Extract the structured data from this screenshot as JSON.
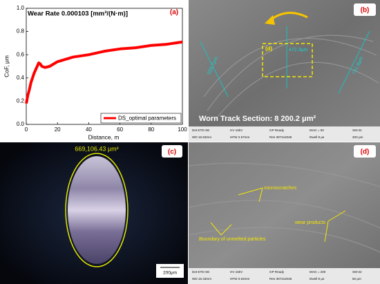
{
  "chart_data": {
    "type": "line",
    "panel_label": "(a)",
    "title": "Wear Rate 0.000103 [mm³/(N·m)]",
    "x_label": "Distance, m",
    "y_label": "CoF, μm",
    "xlim": [
      0,
      100
    ],
    "xticks": [
      0,
      20,
      40,
      60,
      80,
      100
    ],
    "ylim": [
      0,
      1.0
    ],
    "yticks": [
      {
        "value": 0,
        "label": "0.0"
      },
      0.2,
      0.4,
      0.6,
      0.8,
      {
        "value": 1.0,
        "label": "1.0"
      }
    ],
    "legend": "lower right",
    "series": [
      {
        "name": "DS_optimal parameters",
        "color": "#ff0000",
        "x": [
          0,
          1,
          2,
          3,
          5,
          7,
          8,
          9,
          10,
          12,
          15,
          20,
          30,
          40,
          50,
          60,
          70,
          80,
          90,
          95,
          100
        ],
        "values": [
          0.18,
          0.25,
          0.3,
          0.36,
          0.44,
          0.5,
          0.53,
          0.52,
          0.5,
          0.49,
          0.5,
          0.54,
          0.58,
          0.6,
          0.63,
          0.65,
          0.66,
          0.68,
          0.69,
          0.7,
          0.71
        ]
      }
    ]
  },
  "panels": {
    "b": {
      "label": "(b)",
      "measurements": [
        "659.7μm",
        "472.3μm",
        "731.9μm"
      ],
      "inset_label": "(d)",
      "caption": "Worn Track Section: 8 200.2 μm²",
      "info_bar": [
        [
          "Det ETD-SE",
          "HV 15kV",
          "GP Ready",
          "MAG = 50",
          "SM-32"
        ],
        [
          "WD 15.53mm",
          "HFW 2.57mm",
          "Res 3072x2048",
          "Dwell 8 µs",
          "200 µm"
        ]
      ]
    },
    "c": {
      "label": "(c)",
      "area": "669,106.43 μm²",
      "scale_bar": "200μm"
    },
    "d": {
      "label": "(d)",
      "annotations": [
        "microscratches",
        "wear products",
        "Boundary of unmelted particles"
      ],
      "info_bar": [
        [
          "Det ETD-SE",
          "HV 15kV",
          "GP Ready",
          "MAG = 200",
          "SM-32"
        ],
        [
          "WD 15.33mm",
          "HFW 0.64mm",
          "Res 3072x2048",
          "Dwell 8 µs",
          "50 µm"
        ]
      ]
    }
  }
}
